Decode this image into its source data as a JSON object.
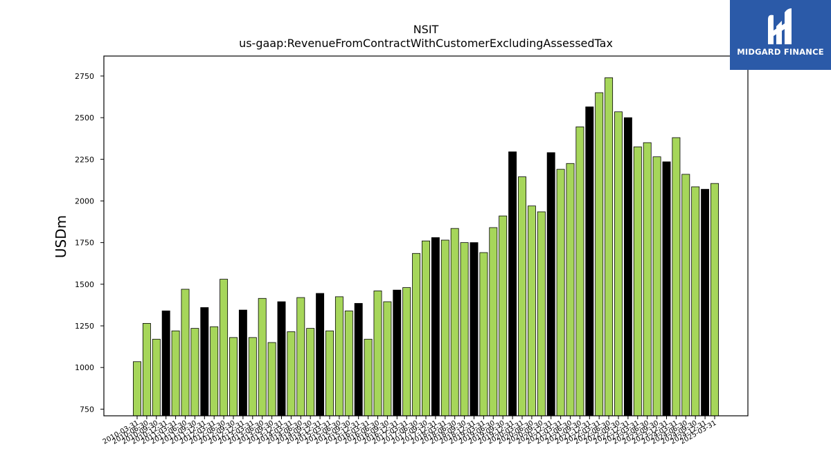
{
  "chart_data": {
    "type": "bar",
    "title": "NSIT",
    "subtitle": "us-gaap:RevenueFromContractWithCustomerExcludingAssessedTax",
    "xlabel": "",
    "ylabel": "USDm",
    "ylim": [
      710,
      2870
    ],
    "yticks": [
      750,
      1000,
      1250,
      1500,
      1750,
      2000,
      2250,
      2500,
      2750
    ],
    "grid": false,
    "colors": {
      "quarter": "#a6d65a",
      "fiscal_year_end": "#000000",
      "edge": "#000000"
    },
    "categories": [
      "2010-03-31",
      "2010-06-30",
      "2010-09-30",
      "2010-12-31",
      "2011-03-31",
      "2011-06-30",
      "2011-09-30",
      "2011-12-31",
      "2012-03-31",
      "2012-06-30",
      "2012-09-30",
      "2012-12-31",
      "2013-03-31",
      "2013-06-30",
      "2013-09-30",
      "2013-12-31",
      "2014-03-31",
      "2014-06-30",
      "2014-09-30",
      "2014-12-31",
      "2015-03-31",
      "2015-06-30",
      "2015-09-30",
      "2015-12-31",
      "2016-03-31",
      "2016-06-30",
      "2016-09-30",
      "2016-12-31",
      "2017-03-31",
      "2017-06-30",
      "2017-09-30",
      "2017-12-31",
      "2018-03-31",
      "2018-06-30",
      "2018-09-30",
      "2018-12-31",
      "2019-03-31",
      "2019-06-30",
      "2019-09-30",
      "2019-12-31",
      "2020-03-31",
      "2020-06-30",
      "2020-09-30",
      "2020-12-31",
      "2021-03-31",
      "2021-06-30",
      "2021-09-30",
      "2021-12-31",
      "2022-03-31",
      "2022-06-30",
      "2022-09-30",
      "2022-12-31",
      "2023-03-31",
      "2023-06-30",
      "2023-09-30",
      "2023-12-31",
      "2024-03-31",
      "2024-06-30",
      "2024-09-30",
      "2024-12-31",
      "2025-03-31"
    ],
    "values": [
      1035,
      1265,
      1170,
      1340,
      1220,
      1470,
      1235,
      1360,
      1245,
      1530,
      1180,
      1345,
      1180,
      1415,
      1150,
      1395,
      1215,
      1420,
      1235,
      1445,
      1220,
      1425,
      1340,
      1385,
      1170,
      1460,
      1395,
      1465,
      1480,
      1685,
      1760,
      1780,
      1765,
      1835,
      1750,
      1750,
      1690,
      1840,
      1910,
      2295,
      2145,
      1970,
      1935,
      2290,
      2190,
      2225,
      2445,
      2565,
      2650,
      2740,
      2535,
      2500,
      2325,
      2350,
      2265,
      2235,
      2380,
      2160,
      2085,
      2070,
      2105
    ],
    "highlight": [
      false,
      false,
      false,
      true,
      false,
      false,
      false,
      true,
      false,
      false,
      false,
      true,
      false,
      false,
      false,
      true,
      false,
      false,
      false,
      true,
      false,
      false,
      false,
      true,
      false,
      false,
      false,
      true,
      false,
      false,
      false,
      true,
      false,
      false,
      false,
      true,
      false,
      false,
      false,
      true,
      false,
      false,
      false,
      true,
      false,
      false,
      false,
      true,
      false,
      false,
      false,
      true,
      false,
      false,
      false,
      true,
      false,
      false,
      false,
      true,
      false
    ]
  },
  "logo": {
    "text": "MIDGARD FINANCE"
  }
}
